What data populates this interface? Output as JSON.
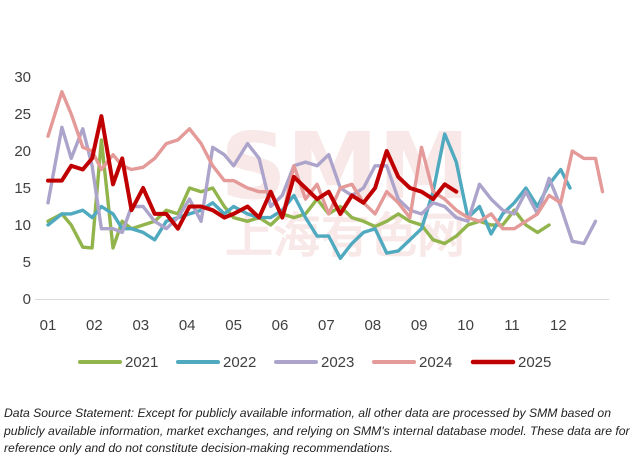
{
  "chart_data": {
    "type": "line",
    "title": "",
    "xlabel": "",
    "ylabel": "",
    "ylim": [
      0,
      30
    ],
    "xlim": [
      1,
      12.95
    ],
    "y_ticks": [
      "0",
      "5",
      "10",
      "15",
      "20",
      "25",
      "30"
    ],
    "x_ticks": [
      "01",
      "02",
      "03",
      "04",
      "05",
      "06",
      "07",
      "08",
      "09",
      "10",
      "11",
      "12"
    ],
    "grid": false,
    "legend_position": "bottom",
    "series": [
      {
        "name": "2021",
        "color": "#92b44c",
        "x": [
          1.0,
          1.3,
          1.5,
          1.75,
          1.95,
          2.15,
          2.4,
          2.6,
          2.8,
          3.05,
          3.3,
          3.55,
          3.8,
          4.05,
          4.3,
          4.55,
          4.8,
          5.0,
          5.3,
          5.55,
          5.8,
          6.05,
          6.3,
          6.55,
          6.8,
          7.05,
          7.3,
          7.55,
          7.8,
          8.05,
          8.3,
          8.55,
          8.8,
          9.05,
          9.3,
          9.55,
          9.8,
          10.05,
          10.3,
          10.55,
          10.8,
          11.05,
          11.3,
          11.55,
          11.8
        ],
        "y": [
          10.5,
          11.5,
          10.0,
          7.0,
          6.9,
          21.5,
          6.9,
          10.5,
          9.5,
          10.0,
          10.5,
          12.0,
          11.5,
          15.0,
          14.5,
          15.0,
          12.5,
          11.0,
          10.5,
          11.0,
          10.0,
          11.5,
          11.0,
          11.5,
          13.5,
          11.5,
          12.5,
          11.0,
          10.5,
          9.8,
          10.5,
          11.5,
          10.5,
          10.0,
          8.0,
          7.5,
          8.5,
          10.0,
          10.5,
          10.0,
          10.0,
          12.0,
          10.0,
          9.0,
          10.0
        ]
      },
      {
        "name": "2022",
        "color": "#4fa9bf",
        "x": [
          1.0,
          1.3,
          1.5,
          1.75,
          1.95,
          2.15,
          2.4,
          2.6,
          2.8,
          3.05,
          3.3,
          3.55,
          3.8,
          4.05,
          4.3,
          4.55,
          4.8,
          5.0,
          5.3,
          5.55,
          5.8,
          6.05,
          6.3,
          6.55,
          6.8,
          7.05,
          7.3,
          7.55,
          7.8,
          8.05,
          8.3,
          8.55,
          8.8,
          9.05,
          9.3,
          9.55,
          9.8,
          10.05,
          10.3,
          10.55,
          10.8,
          11.05,
          11.3,
          11.55,
          11.8,
          12.05,
          12.25
        ],
        "y": [
          10.0,
          11.5,
          11.5,
          12.0,
          11.0,
          12.5,
          11.5,
          9.5,
          9.5,
          9.0,
          8.0,
          10.5,
          11.0,
          11.5,
          12.0,
          13.0,
          11.5,
          12.5,
          11.5,
          11.0,
          11.0,
          12.0,
          14.0,
          11.0,
          8.5,
          8.5,
          5.5,
          7.5,
          9.0,
          9.5,
          6.2,
          6.5,
          8.0,
          9.5,
          14.5,
          22.3,
          18.5,
          11.0,
          12.5,
          8.8,
          11.5,
          13.0,
          15.0,
          12.5,
          15.5,
          17.5,
          15.0
        ]
      },
      {
        "name": "2023",
        "color": "#ada4cb",
        "x": [
          1.0,
          1.3,
          1.5,
          1.75,
          1.95,
          2.15,
          2.4,
          2.6,
          2.8,
          3.05,
          3.3,
          3.55,
          3.8,
          4.05,
          4.3,
          4.55,
          4.8,
          5.0,
          5.3,
          5.55,
          5.8,
          6.05,
          6.3,
          6.55,
          6.8,
          7.05,
          7.3,
          7.55,
          7.8,
          8.05,
          8.3,
          8.55,
          8.8,
          9.05,
          9.3,
          9.55,
          9.8,
          10.05,
          10.3,
          10.55,
          10.8,
          11.05,
          11.3,
          11.55,
          11.8,
          12.05,
          12.3,
          12.55,
          12.8
        ],
        "y": [
          13.0,
          23.2,
          19.0,
          23.0,
          18.0,
          9.5,
          9.5,
          9.0,
          12.5,
          12.5,
          10.5,
          9.5,
          11.0,
          13.5,
          10.5,
          20.5,
          19.5,
          18.0,
          21.0,
          19.0,
          12.5,
          14.0,
          18.0,
          18.5,
          18.0,
          19.5,
          15.0,
          14.0,
          15.0,
          18.0,
          18.0,
          13.5,
          12.0,
          11.5,
          13.0,
          12.5,
          11.0,
          10.5,
          15.5,
          13.5,
          12.0,
          11.5,
          14.5,
          11.5,
          16.3,
          12.5,
          7.8,
          7.5,
          10.5
        ]
      },
      {
        "name": "2024",
        "color": "#e49a98",
        "x": [
          1.0,
          1.3,
          1.5,
          1.75,
          1.95,
          2.15,
          2.4,
          2.6,
          2.8,
          3.05,
          3.3,
          3.55,
          3.8,
          4.05,
          4.3,
          4.55,
          4.8,
          5.0,
          5.3,
          5.55,
          5.8,
          6.05,
          6.3,
          6.55,
          6.8,
          7.05,
          7.3,
          7.55,
          7.8,
          8.05,
          8.3,
          8.55,
          8.8,
          9.05,
          9.3,
          9.55,
          9.8,
          10.05,
          10.3,
          10.55,
          10.8,
          11.05,
          11.3,
          11.55,
          11.8,
          12.05,
          12.3,
          12.55,
          12.8,
          12.95
        ],
        "y": [
          22.0,
          28.0,
          25.0,
          20.5,
          20.0,
          17.5,
          19.5,
          18.0,
          17.5,
          17.8,
          19.0,
          21.0,
          21.5,
          23.0,
          21.0,
          18.0,
          16.0,
          16.0,
          15.0,
          14.5,
          14.5,
          11.0,
          18.0,
          13.5,
          15.5,
          11.5,
          15.0,
          15.5,
          13.0,
          11.5,
          14.5,
          13.0,
          11.0,
          20.5,
          14.5,
          13.5,
          12.0,
          11.0,
          10.5,
          11.5,
          9.5,
          9.5,
          10.5,
          11.5,
          14.0,
          13.0,
          20.0,
          19.0,
          19.0,
          14.5
        ]
      },
      {
        "name": "2025",
        "color": "#c00000",
        "x": [
          1.0,
          1.3,
          1.5,
          1.75,
          1.95,
          2.15,
          2.4,
          2.6,
          2.8,
          3.05,
          3.3,
          3.55,
          3.8,
          4.05,
          4.3,
          4.55,
          4.8,
          5.0,
          5.3,
          5.55,
          5.8,
          6.05,
          6.3,
          6.55,
          6.8,
          7.05,
          7.3,
          7.55,
          7.8,
          8.05,
          8.3,
          8.55,
          8.8,
          9.05,
          9.3,
          9.55,
          9.8
        ],
        "y": [
          16.0,
          16.0,
          18.0,
          17.5,
          19.0,
          24.7,
          15.5,
          19.0,
          12.0,
          15.0,
          11.5,
          11.5,
          9.5,
          12.5,
          12.5,
          12.0,
          11.0,
          11.5,
          12.5,
          11.0,
          14.5,
          11.0,
          16.5,
          15.0,
          13.5,
          14.5,
          11.5,
          14.0,
          13.0,
          15.0,
          20.0,
          16.5,
          15.0,
          14.5,
          13.5,
          15.5,
          14.5
        ]
      }
    ]
  },
  "watermark_text": "SMM",
  "watermark_cn": "上海有色网",
  "source_note": "Data Source Statement: Except for publicly available information, all other data are processed by SMM based on publicly available information, market exchanges, and relying on SMM's internal database model. These data are for reference only and do not constitute decision-making recommendations."
}
